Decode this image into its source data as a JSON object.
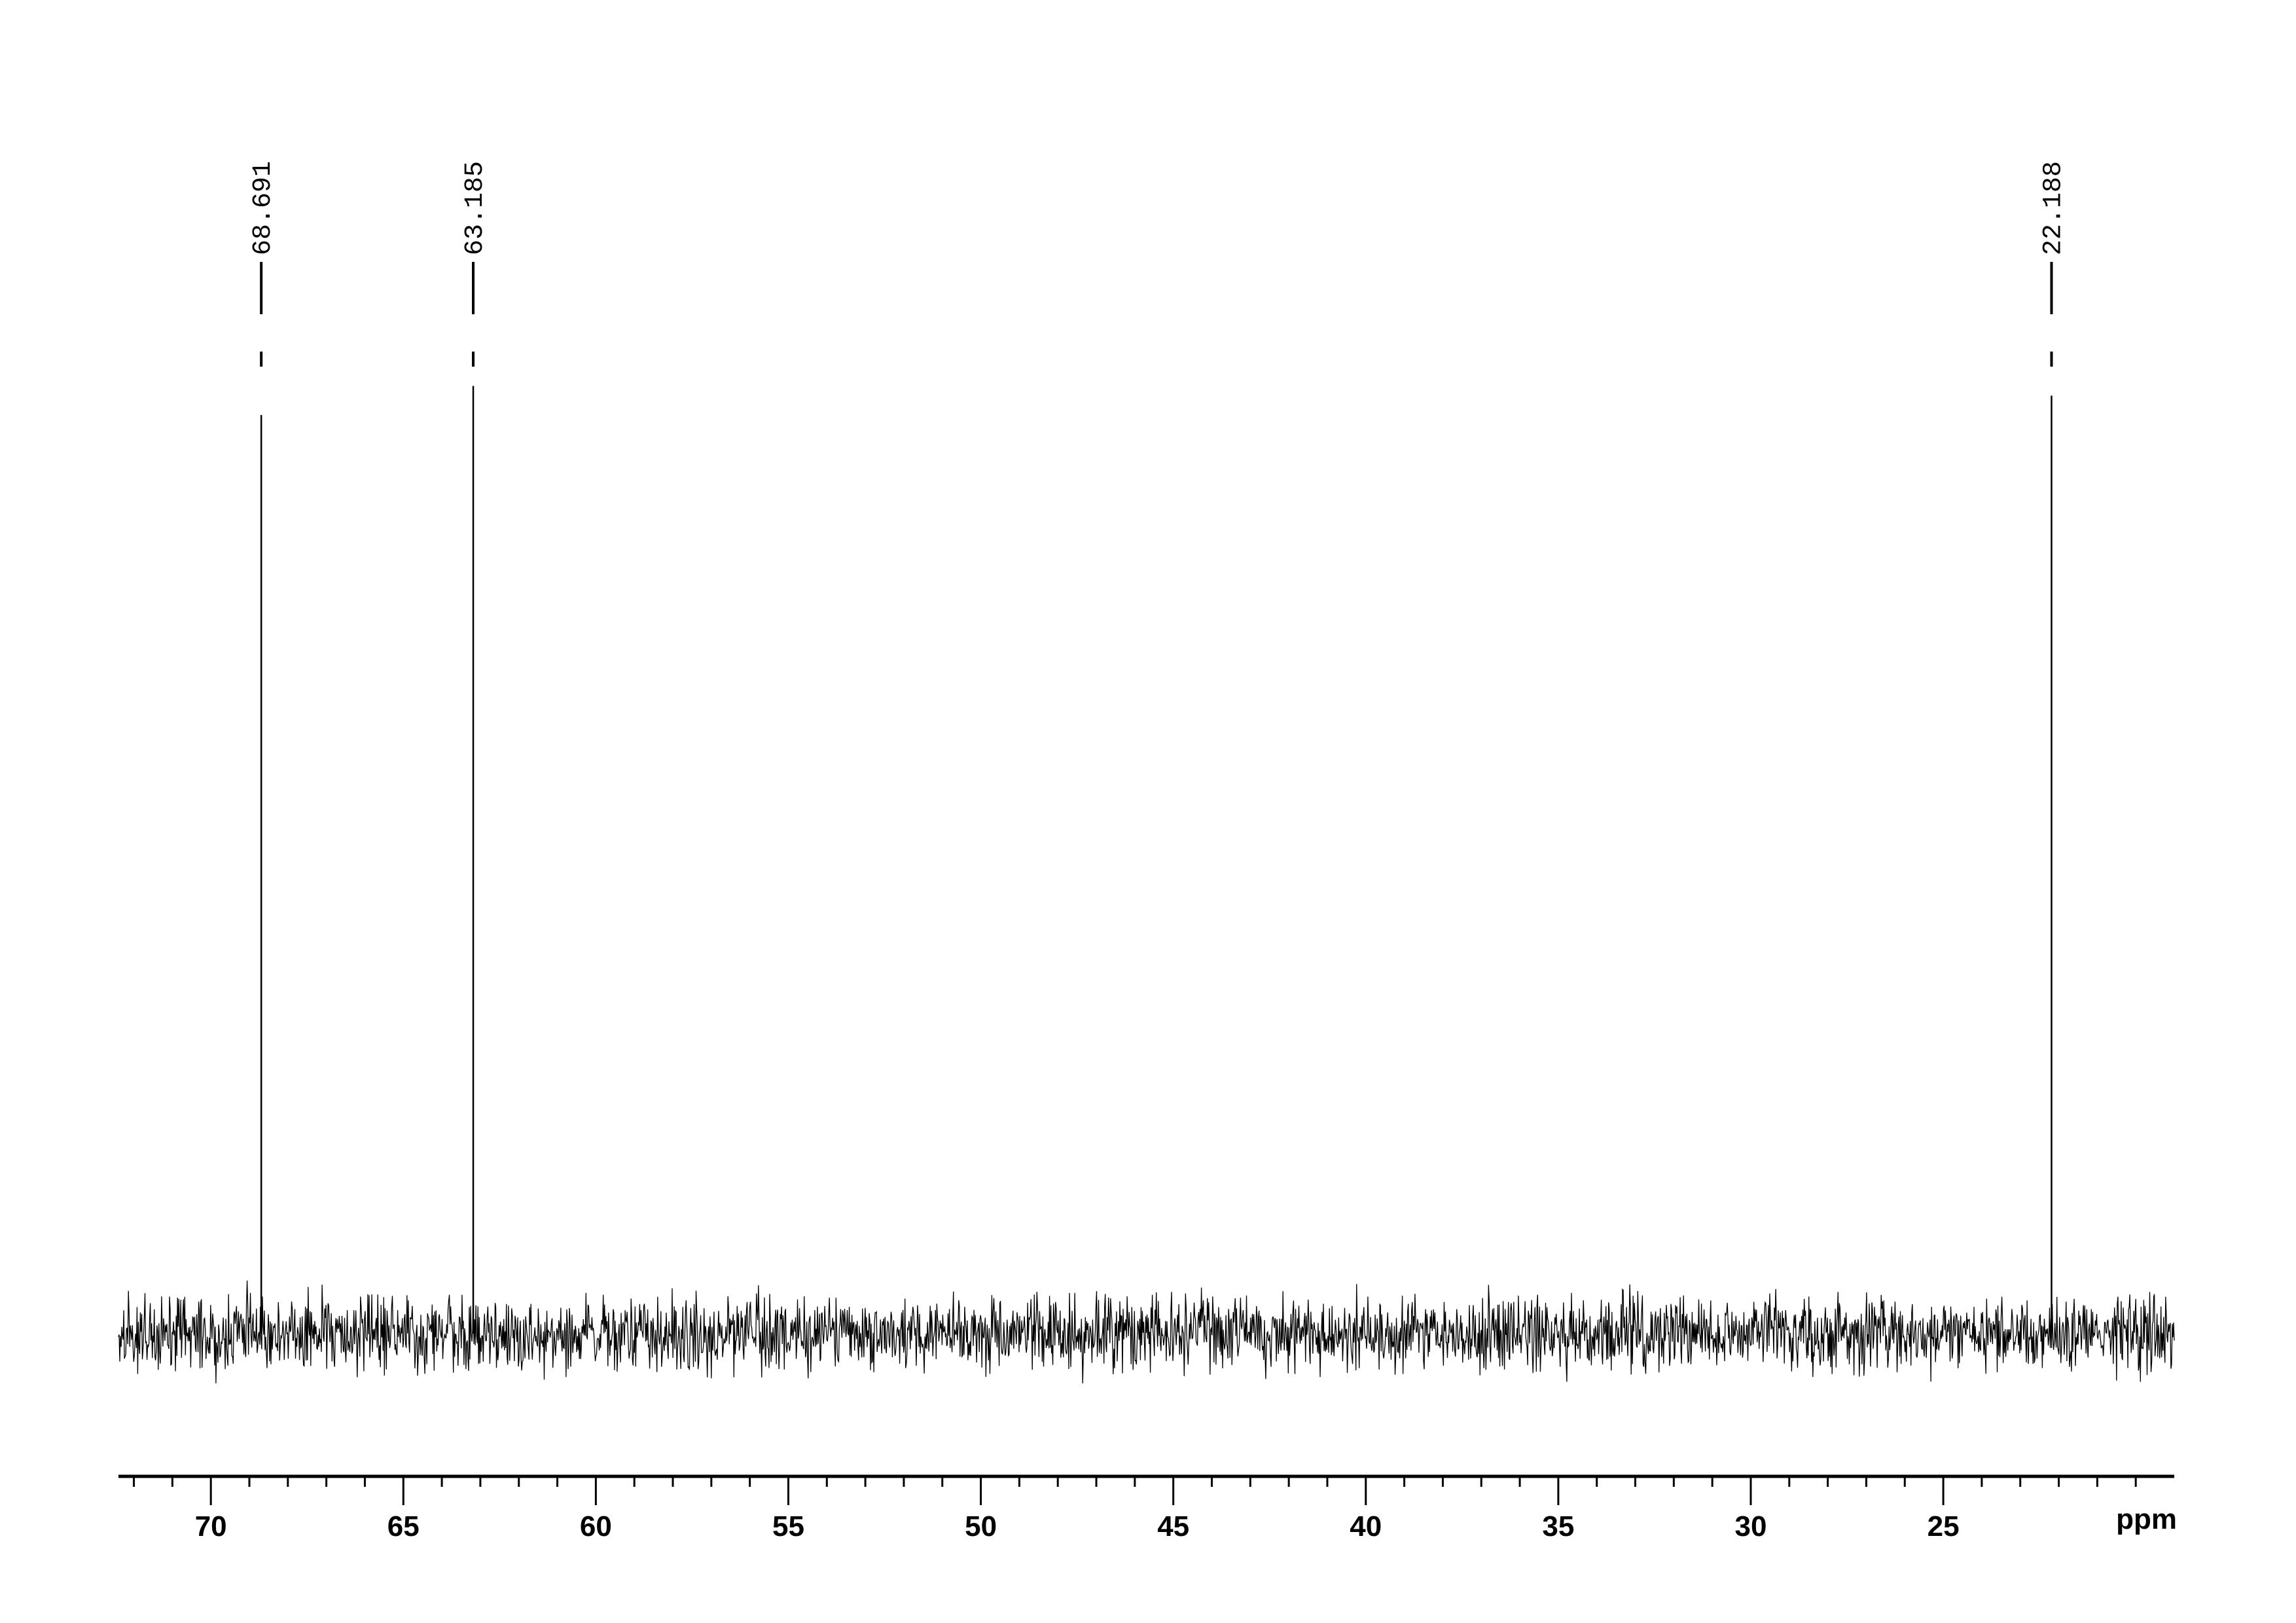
{
  "chart_data": {
    "type": "line",
    "title": "",
    "xlabel": "ppm",
    "ylabel": "",
    "xlim": [
      72.4,
      19.0
    ],
    "x_reversed": true,
    "grid": false,
    "x_ticks": [
      70,
      65,
      60,
      55,
      50,
      45,
      40,
      35,
      30,
      25
    ],
    "x_tick_labels": [
      "70",
      "65",
      "60",
      "55",
      "50",
      "45",
      "40",
      "35",
      "30",
      "25"
    ],
    "minor_tick_step": 1,
    "peaks": [
      {
        "ppm": 68.691,
        "label": "68.691",
        "relative_height": 0.95
      },
      {
        "ppm": 63.185,
        "label": "63.185",
        "relative_height": 0.98
      },
      {
        "ppm": 22.188,
        "label": "22.188",
        "relative_height": 0.97
      }
    ],
    "baseline": "noise",
    "line_color": "#000000"
  }
}
